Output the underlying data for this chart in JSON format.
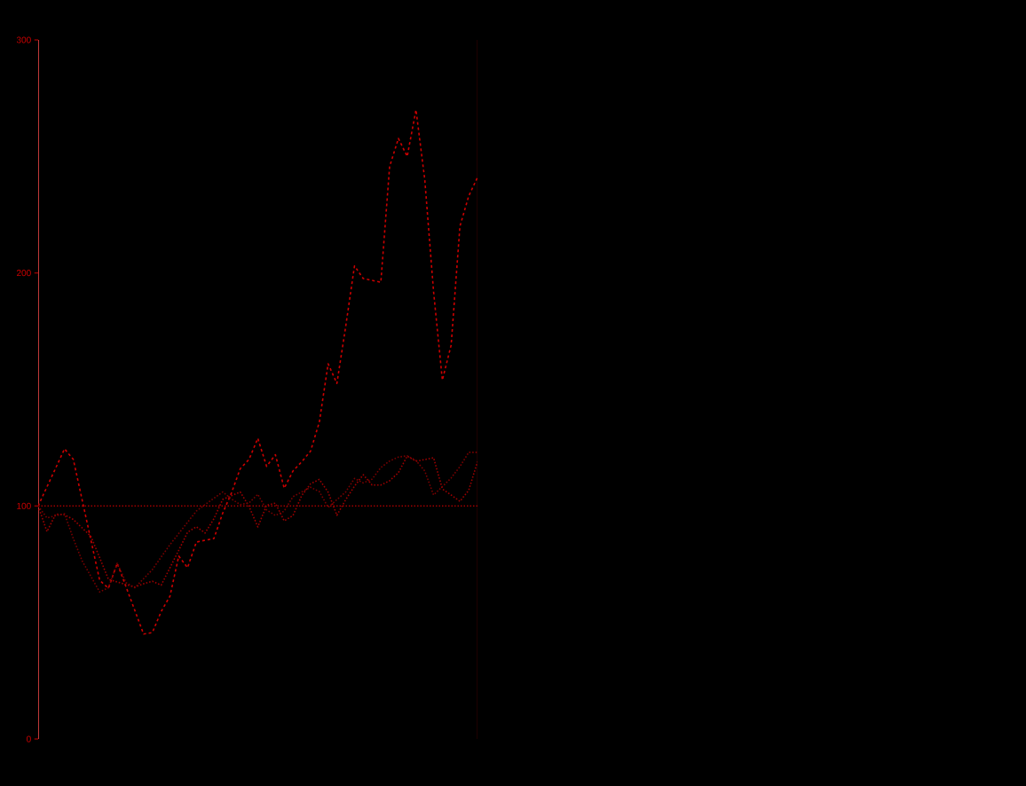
{
  "chart_data": {
    "type": "line",
    "categories": [
      null,
      null,
      null,
      null,
      null,
      null,
      null,
      null,
      null,
      null,
      null,
      null,
      null,
      null,
      null,
      null,
      null,
      null,
      null,
      null,
      null,
      null,
      null,
      null,
      null,
      null,
      null,
      null,
      null,
      null,
      null,
      null,
      null,
      null,
      null,
      null,
      null,
      null,
      null,
      null,
      null,
      null,
      null,
      null,
      null,
      null,
      null,
      null,
      null,
      null,
      null
    ],
    "ylim": [
      0,
      300
    ],
    "yticks": [
      0,
      100,
      200,
      300
    ],
    "tick_labels": "y",
    "grid": false,
    "ref_lines": [
      {
        "axis": "y",
        "value": 100,
        "color": "#aa0000",
        "line_style": "dotted"
      }
    ],
    "series": [
      {
        "color": "#cc0000",
        "line_style": "dashed",
        "values": [
          100,
          108.2,
          116.3,
          124.5,
          120,
          102.7,
          85.4,
          68.1,
          64.7,
          75.4,
          65.3,
          55.2,
          45,
          45.7,
          54.7,
          61.3,
          78.5,
          73.5,
          84.5,
          85.3,
          86,
          96.9,
          105.6,
          116,
          120,
          129,
          117,
          122,
          107.6,
          115,
          119,
          123.5,
          136,
          161,
          152.6,
          177,
          203,
          197.6,
          196.8,
          196,
          245.7,
          257.7,
          250,
          270,
          240,
          192,
          154,
          169,
          220,
          233,
          241
        ]
      },
      {
        "color": "#990000",
        "line_style": "dotted",
        "values": [
          100,
          89,
          96.5,
          96.2,
          94.2,
          90.6,
          87,
          77.8,
          68.5,
          67.4,
          66.3,
          65.2,
          66.6,
          67.7,
          66,
          73.5,
          81,
          88.7,
          91.1,
          88.4,
          94.5,
          102.8,
          104.4,
          106,
          99.8,
          91,
          100.3,
          101.2,
          93.6,
          95.9,
          104.5,
          109.5,
          111.4,
          105.9,
          96,
          102.7,
          108.5,
          113.4,
          109,
          109,
          110.8,
          114.3,
          121.4,
          119.2,
          119.9,
          120.7,
          107.3,
          104.7,
          102,
          106.7,
          119
        ]
      },
      {
        "color": "#770000",
        "line_style": "dotted",
        "values": [
          100,
          94.9,
          95.8,
          96.7,
          86,
          76.5,
          69.8,
          63.1,
          64.9,
          75.4,
          67.1,
          64.9,
          68.8,
          72.7,
          78.1,
          83.4,
          88.2,
          93,
          97.8,
          100.6,
          103.3,
          106,
          103,
          100.6,
          101.3,
          105,
          98.3,
          95.9,
          97.8,
          104,
          106,
          108,
          106.2,
          99.4,
          102.7,
          106,
          111.8,
          109.9,
          111.5,
          116.5,
          119.3,
          121,
          121.5,
          119.5,
          115,
          104.7,
          108.3,
          112,
          116.9,
          123,
          123
        ]
      }
    ]
  }
}
